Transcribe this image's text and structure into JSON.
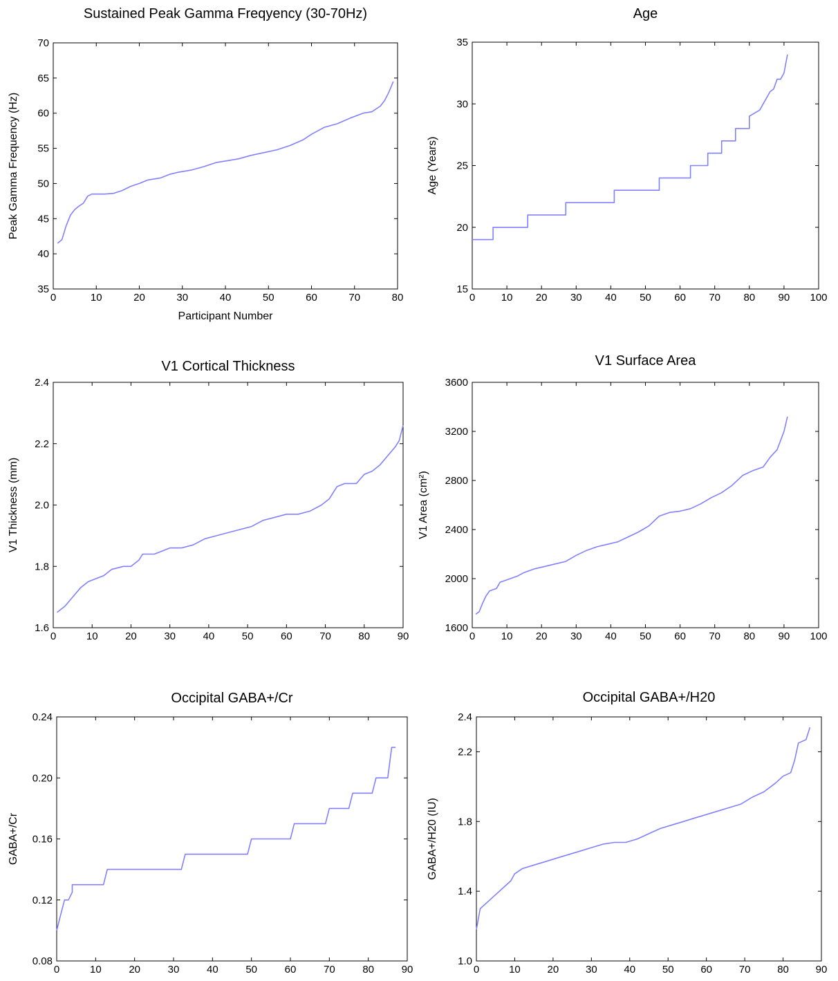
{
  "line_color": "#8080ff",
  "chart_data": [
    {
      "type": "line",
      "title": "Sustained Peak Gamma Freqyency (30-70Hz)",
      "xlabel": "Participant Number",
      "ylabel": "Peak Gamma Frequency (Hz)",
      "xlim": [
        0,
        80
      ],
      "ylim": [
        35,
        70
      ],
      "xticks": [
        0,
        10,
        20,
        30,
        40,
        50,
        60,
        70,
        80
      ],
      "yticks": [
        35,
        40,
        45,
        50,
        55,
        60,
        65,
        70
      ],
      "xtick_labels": [
        "0",
        "10",
        "20",
        "30",
        "40",
        "50",
        "60",
        "70",
        "80"
      ],
      "ytick_labels": [
        "35",
        "40",
        "45",
        "50",
        "55",
        "60",
        "65",
        "70"
      ],
      "grid": false,
      "x": [
        1,
        2,
        3,
        4,
        5,
        6,
        7,
        8,
        9,
        10,
        12,
        14,
        16,
        18,
        20,
        22,
        25,
        27,
        29,
        32,
        35,
        38,
        40,
        43,
        46,
        49,
        52,
        55,
        58,
        60,
        63,
        66,
        69,
        72,
        74,
        76,
        77,
        78,
        79
      ],
      "y": [
        41.5,
        42,
        44,
        45.5,
        46.3,
        46.8,
        47.2,
        48.2,
        48.5,
        48.5,
        48.5,
        48.6,
        49,
        49.6,
        50,
        50.5,
        50.8,
        51.3,
        51.6,
        51.9,
        52.4,
        53,
        53.2,
        53.5,
        54,
        54.4,
        54.8,
        55.4,
        56.2,
        57,
        58,
        58.5,
        59.3,
        60,
        60.2,
        61,
        61.8,
        63,
        64.5
      ]
    },
    {
      "type": "line",
      "title": "Age",
      "xlabel": "",
      "ylabel": "Age (Years)",
      "xlim": [
        0,
        100
      ],
      "ylim": [
        15,
        35
      ],
      "xticks": [
        0,
        10,
        20,
        30,
        40,
        50,
        60,
        70,
        80,
        90,
        100
      ],
      "yticks": [
        15,
        20,
        25,
        30,
        35
      ],
      "xtick_labels": [
        "0",
        "10",
        "20",
        "30",
        "40",
        "50",
        "60",
        "70",
        "80",
        "90",
        "100"
      ],
      "ytick_labels": [
        "15",
        "20",
        "25",
        "30",
        "35"
      ],
      "grid": false,
      "x": [
        0,
        6,
        6,
        16,
        16,
        27,
        27,
        41,
        41,
        54,
        54,
        63,
        63,
        68,
        68,
        72,
        72,
        76,
        76,
        80,
        80,
        83,
        84,
        86,
        87,
        88,
        89,
        90,
        91
      ],
      "y": [
        19,
        19,
        20,
        20,
        21,
        21,
        22,
        22,
        23,
        23,
        24,
        24,
        25,
        25,
        26,
        26,
        27,
        27,
        28,
        28,
        29,
        29.5,
        30,
        31,
        31.2,
        32,
        32,
        32.5,
        34
      ]
    },
    {
      "type": "line",
      "title": "V1 Cortical Thickness",
      "xlabel": "",
      "ylabel": "V1 Thickness (mm)",
      "xlim": [
        0,
        90
      ],
      "ylim": [
        1.6,
        2.4
      ],
      "xticks": [
        0,
        10,
        20,
        30,
        40,
        50,
        60,
        70,
        80,
        90
      ],
      "yticks": [
        1.6,
        1.8,
        2.0,
        2.2,
        2.4
      ],
      "xtick_labels": [
        "0",
        "10",
        "20",
        "30",
        "40",
        "50",
        "60",
        "70",
        "80",
        "90"
      ],
      "ytick_labels": [
        "1.6",
        "1.8",
        "2.0",
        "2.2",
        "2.4"
      ],
      "grid": false,
      "x": [
        1,
        3,
        5,
        7,
        9,
        11,
        13,
        15,
        18,
        20,
        22,
        23,
        26,
        28,
        30,
        33,
        36,
        39,
        42,
        45,
        48,
        51,
        54,
        57,
        60,
        63,
        66,
        69,
        71,
        73,
        75,
        78,
        80,
        82,
        84,
        86,
        88,
        89,
        90
      ],
      "y": [
        1.65,
        1.67,
        1.7,
        1.73,
        1.75,
        1.76,
        1.77,
        1.79,
        1.8,
        1.8,
        1.82,
        1.84,
        1.84,
        1.85,
        1.86,
        1.86,
        1.87,
        1.89,
        1.9,
        1.91,
        1.92,
        1.93,
        1.95,
        1.96,
        1.97,
        1.97,
        1.98,
        2.0,
        2.02,
        2.06,
        2.07,
        2.07,
        2.1,
        2.11,
        2.13,
        2.16,
        2.19,
        2.21,
        2.26
      ]
    },
    {
      "type": "line",
      "title": "V1 Surface Area",
      "xlabel": "",
      "ylabel": "V1 Area (cm²)",
      "xlim": [
        0,
        100
      ],
      "ylim": [
        1600,
        3600
      ],
      "xticks": [
        0,
        10,
        20,
        30,
        40,
        50,
        60,
        70,
        80,
        90,
        100
      ],
      "yticks": [
        1600,
        2000,
        2400,
        2800,
        3200,
        3600
      ],
      "xtick_labels": [
        "0",
        "10",
        "20",
        "30",
        "40",
        "50",
        "60",
        "70",
        "80",
        "90",
        "100"
      ],
      "ytick_labels": [
        "1600",
        "2000",
        "2400",
        "2800",
        "3200",
        "3600"
      ],
      "grid": false,
      "x": [
        1,
        2,
        3,
        4,
        5,
        7,
        8,
        10,
        13,
        15,
        18,
        21,
        24,
        27,
        30,
        33,
        36,
        39,
        42,
        45,
        48,
        51,
        54,
        57,
        60,
        63,
        66,
        69,
        72,
        75,
        78,
        81,
        84,
        86,
        88,
        90,
        91
      ],
      "y": [
        1710,
        1730,
        1800,
        1860,
        1900,
        1920,
        1970,
        1990,
        2020,
        2050,
        2080,
        2100,
        2120,
        2140,
        2190,
        2230,
        2260,
        2280,
        2300,
        2340,
        2380,
        2430,
        2510,
        2540,
        2550,
        2570,
        2610,
        2660,
        2700,
        2760,
        2840,
        2880,
        2910,
        2990,
        3050,
        3200,
        3320
      ]
    },
    {
      "type": "line",
      "title": "Occipital GABA+/Cr",
      "xlabel": "",
      "ylabel": "GABA+/Cr",
      "xlim": [
        0,
        90
      ],
      "ylim": [
        0.08,
        0.24
      ],
      "xticks": [
        0,
        10,
        20,
        30,
        40,
        50,
        60,
        70,
        80,
        90
      ],
      "yticks": [
        0.08,
        0.12,
        0.16,
        0.2,
        0.24
      ],
      "xtick_labels": [
        "0",
        "10",
        "20",
        "30",
        "40",
        "50",
        "60",
        "70",
        "80",
        "90"
      ],
      "ytick_labels": [
        "0.08",
        "0.12",
        "0.16",
        "0.20",
        "0.24"
      ],
      "grid": false,
      "x": [
        0,
        1,
        2,
        3,
        4,
        4,
        12,
        13,
        32,
        33,
        49,
        50,
        60,
        61,
        69,
        70,
        75,
        76,
        81,
        82,
        85,
        86,
        87
      ],
      "y": [
        0.1,
        0.11,
        0.12,
        0.12,
        0.125,
        0.13,
        0.13,
        0.14,
        0.14,
        0.15,
        0.15,
        0.16,
        0.16,
        0.17,
        0.17,
        0.18,
        0.18,
        0.19,
        0.19,
        0.2,
        0.2,
        0.22,
        0.22
      ]
    },
    {
      "type": "line",
      "title": "Occipital GABA+/H20",
      "xlabel": "",
      "ylabel": "GABA+/H20 (IU)",
      "xlim": [
        0,
        90
      ],
      "ylim": [
        1.0,
        2.4
      ],
      "xticks": [
        0,
        10,
        20,
        30,
        40,
        50,
        60,
        70,
        80,
        90
      ],
      "yticks": [
        1.0,
        1.4,
        1.8,
        2.2,
        2.4
      ],
      "xtick_labels": [
        "0",
        "10",
        "20",
        "30",
        "40",
        "50",
        "60",
        "70",
        "80",
        "90"
      ],
      "ytick_labels": [
        "1.0",
        "1.4",
        "1.8",
        "2.2",
        "2.4"
      ],
      "grid": false,
      "x": [
        0,
        1,
        3,
        5,
        7,
        9,
        10,
        12,
        15,
        18,
        21,
        24,
        27,
        30,
        33,
        36,
        39,
        42,
        45,
        48,
        51,
        54,
        57,
        60,
        63,
        66,
        69,
        72,
        75,
        78,
        80,
        82,
        83,
        84,
        86,
        87
      ],
      "y": [
        1.18,
        1.3,
        1.34,
        1.38,
        1.42,
        1.46,
        1.5,
        1.53,
        1.55,
        1.57,
        1.59,
        1.61,
        1.63,
        1.65,
        1.67,
        1.68,
        1.68,
        1.7,
        1.73,
        1.76,
        1.78,
        1.8,
        1.82,
        1.84,
        1.86,
        1.88,
        1.9,
        1.94,
        1.97,
        2.02,
        2.06,
        2.08,
        2.15,
        2.25,
        2.27,
        2.34
      ]
    }
  ]
}
